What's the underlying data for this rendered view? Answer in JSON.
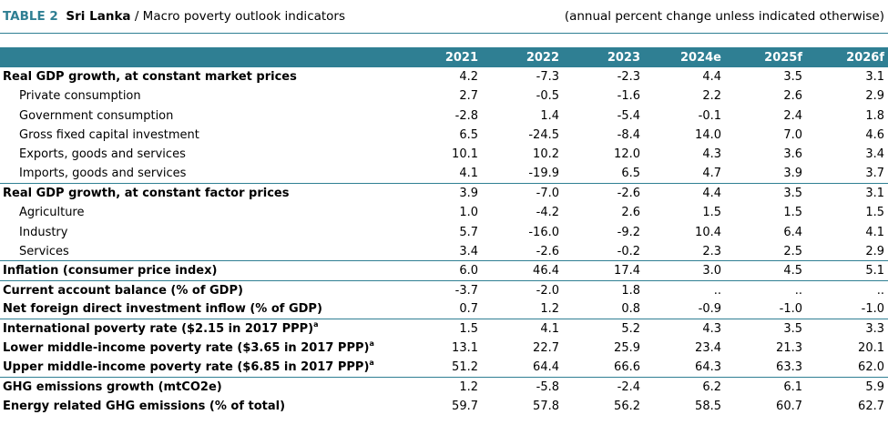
{
  "title": {
    "table_number": "TABLE 2",
    "country": "Sri Lanka",
    "subtitle": " / Macro poverty outlook indicators",
    "note": "(annual percent change unless indicated otherwise)"
  },
  "columns": [
    "2021",
    "2022",
    "2023",
    "2024e",
    "2025f",
    "2026f"
  ],
  "rows": [
    {
      "label": "Real GDP growth, at constant market prices",
      "values": [
        "4.2",
        "-7.3",
        "-2.3",
        "4.4",
        "3.5",
        "3.1"
      ]
    },
    {
      "label": "Private consumption",
      "values": [
        "2.7",
        "-0.5",
        "-1.6",
        "2.2",
        "2.6",
        "2.9"
      ]
    },
    {
      "label": "Government consumption",
      "values": [
        "-2.8",
        "1.4",
        "-5.4",
        "-0.1",
        "2.4",
        "1.8"
      ]
    },
    {
      "label": "Gross fixed capital investment",
      "values": [
        "6.5",
        "-24.5",
        "-8.4",
        "14.0",
        "7.0",
        "4.6"
      ]
    },
    {
      "label": "Exports, goods and services",
      "values": [
        "10.1",
        "10.2",
        "12.0",
        "4.3",
        "3.6",
        "3.4"
      ]
    },
    {
      "label": "Imports, goods and services",
      "values": [
        "4.1",
        "-19.9",
        "6.5",
        "4.7",
        "3.9",
        "3.7"
      ]
    },
    {
      "label": "Real GDP growth, at constant factor prices",
      "values": [
        "3.9",
        "-7.0",
        "-2.6",
        "4.4",
        "3.5",
        "3.1"
      ]
    },
    {
      "label": "Agriculture",
      "values": [
        "1.0",
        "-4.2",
        "2.6",
        "1.5",
        "1.5",
        "1.5"
      ]
    },
    {
      "label": "Industry",
      "values": [
        "5.7",
        "-16.0",
        "-9.2",
        "10.4",
        "6.4",
        "4.1"
      ]
    },
    {
      "label": "Services",
      "values": [
        "3.4",
        "-2.6",
        "-0.2",
        "2.3",
        "2.5",
        "2.9"
      ]
    },
    {
      "label": "Inflation (consumer price index)",
      "values": [
        "6.0",
        "46.4",
        "17.4",
        "3.0",
        "4.5",
        "5.1"
      ]
    },
    {
      "label": "Current account balance (% of GDP)",
      "values": [
        "-3.7",
        "-2.0",
        "1.8",
        "..",
        "..",
        ".."
      ]
    },
    {
      "label": "Net foreign direct investment inflow (% of GDP)",
      "values": [
        "0.7",
        "1.2",
        "0.8",
        "-0.9",
        "-1.0",
        "-1.0"
      ]
    },
    {
      "label": "International poverty rate ($2.15 in 2017 PPP)",
      "sup": "a",
      "values": [
        "1.5",
        "4.1",
        "5.2",
        "4.3",
        "3.5",
        "3.3"
      ]
    },
    {
      "label": "Lower middle-income poverty rate ($3.65 in 2017 PPP)",
      "sup": "a",
      "values": [
        "13.1",
        "22.7",
        "25.9",
        "23.4",
        "21.3",
        "20.1"
      ]
    },
    {
      "label": "Upper middle-income poverty rate ($6.85 in 2017 PPP)",
      "sup": "a",
      "values": [
        "51.2",
        "64.4",
        "66.6",
        "64.3",
        "63.3",
        "62.0"
      ]
    },
    {
      "label": "GHG emissions growth (mtCO2e)",
      "values": [
        "1.2",
        "-5.8",
        "-2.4",
        "6.2",
        "6.1",
        "5.9"
      ]
    },
    {
      "label": "Energy related GHG emissions (% of total)",
      "values": [
        "59.7",
        "57.8",
        "56.2",
        "58.5",
        "60.7",
        "62.7"
      ]
    }
  ]
}
